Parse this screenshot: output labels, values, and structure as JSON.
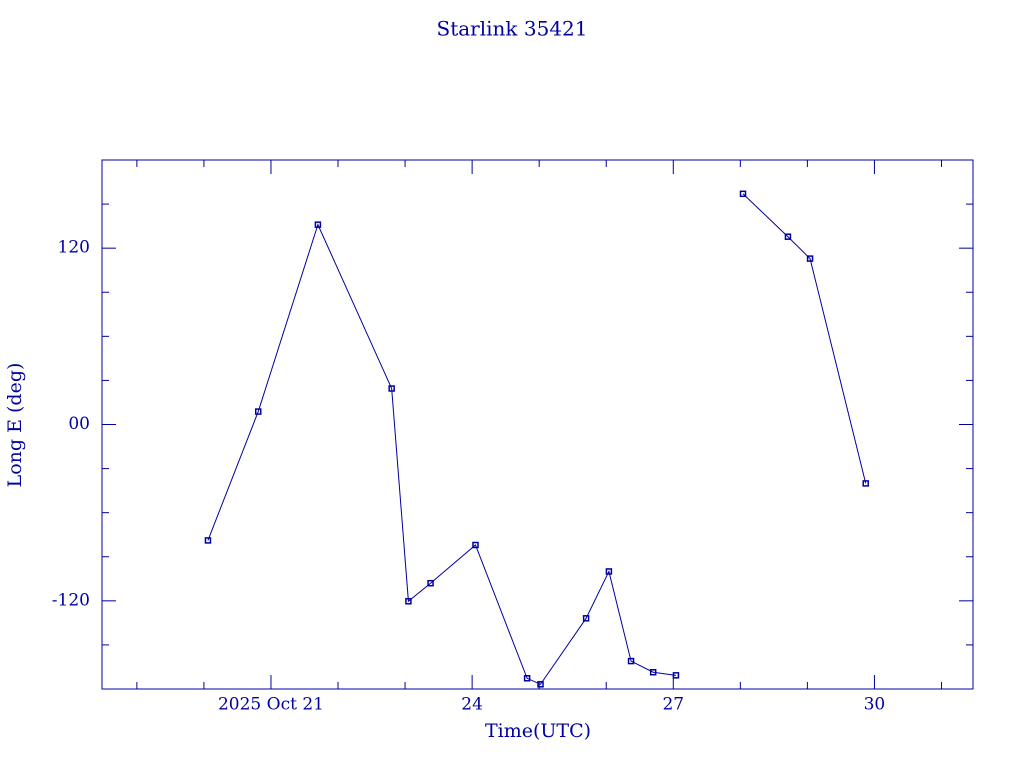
{
  "chart_data": {
    "type": "line",
    "title": "Starlink 35421",
    "x_label": "Time(UTC)",
    "y_label": "Long E (deg)",
    "x": [
      20.06,
      20.81,
      21.7,
      22.8,
      23.05,
      23.38,
      24.05,
      24.82,
      25.02,
      25.7,
      26.04,
      26.37,
      26.7,
      27.04,
      null,
      28.04,
      28.71,
      29.04,
      29.87
    ],
    "series": [
      {
        "color": "#0000a0",
        "values": [
          -78.9,
          8.8,
          136,
          24.5,
          -120.3,
          -108,
          -82,
          -172.7,
          -176.8,
          -131.9,
          -100,
          -161,
          -168.6,
          -170.7,
          null,
          157,
          127.8,
          112.9,
          -40.1
        ]
      }
    ],
    "xlim": [
      18.48,
      31.47
    ],
    "xticks": [
      {
        "value": 21,
        "label": "2025 Oct 21"
      },
      24,
      27,
      30
    ],
    "xminorticks": [
      19,
      20,
      22,
      23,
      25,
      26,
      28,
      29,
      31
    ],
    "ylim": [
      -180,
      180
    ],
    "yticks": [
      {
        "value": 120,
        "label": "120"
      },
      {
        "value": 0,
        "label": "00"
      },
      {
        "value": -120,
        "label": "-120"
      }
    ],
    "yminorticks": [
      -150,
      -90,
      -60,
      -30,
      30,
      60,
      90,
      150
    ]
  }
}
